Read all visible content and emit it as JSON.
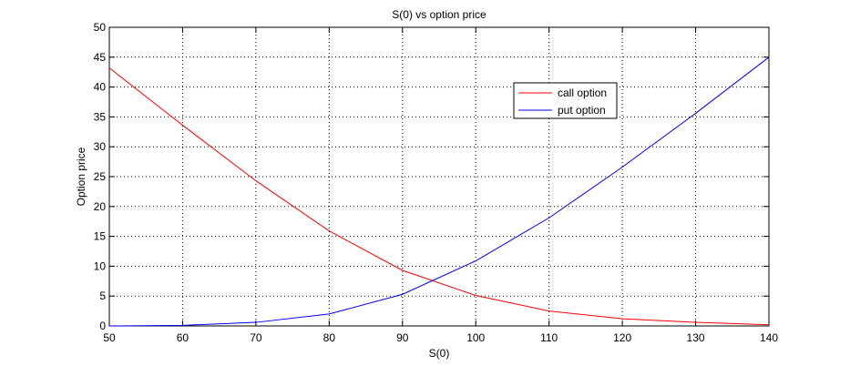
{
  "chart_data": {
    "type": "line",
    "title": "S(0) vs option price",
    "xlabel": "S(0)",
    "ylabel": "Option price",
    "xlim": [
      50,
      140
    ],
    "ylim": [
      0,
      50
    ],
    "x_ticks": [
      50,
      60,
      70,
      80,
      90,
      100,
      110,
      120,
      130,
      140
    ],
    "y_ticks": [
      0,
      5,
      10,
      15,
      20,
      25,
      30,
      35,
      40,
      45,
      50
    ],
    "grid": true,
    "legend_position": "top-right",
    "x": [
      50,
      60,
      70,
      80,
      90,
      100,
      110,
      120,
      130,
      140
    ],
    "series": [
      {
        "name": "call option",
        "color": "#ff0000",
        "values": [
          43.2,
          33.6,
          24.3,
          15.9,
          9.3,
          5.1,
          2.5,
          1.2,
          0.6,
          0.2
        ]
      },
      {
        "name": "put option",
        "color": "#0000ff",
        "values": [
          0.0,
          0.1,
          0.6,
          2.0,
          5.3,
          10.9,
          18.1,
          26.6,
          35.6,
          45.0
        ]
      }
    ]
  }
}
